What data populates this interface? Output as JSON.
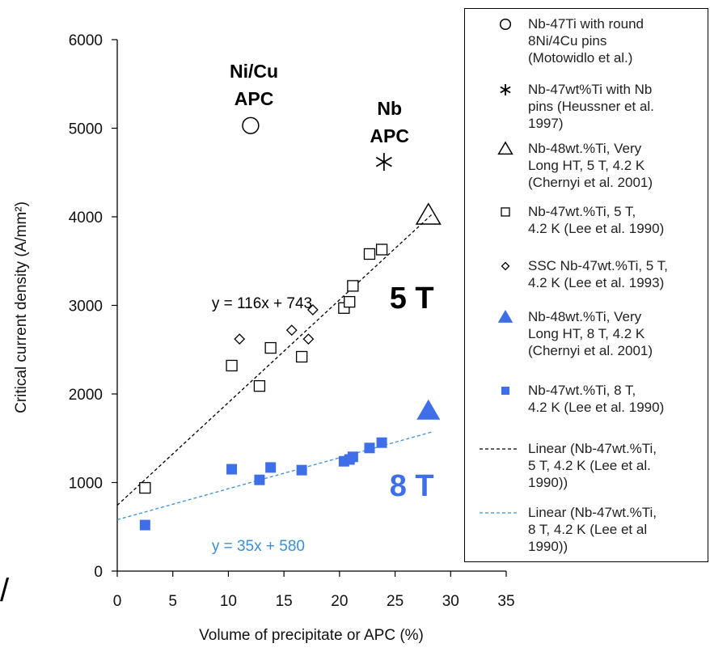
{
  "chart_data": {
    "type": "scatter",
    "xlabel": "Volume of precipitate or APC (%)",
    "ylabel": "Critical current density  (A/mm²)",
    "xlim": [
      0,
      35
    ],
    "ylim": [
      0,
      6000
    ],
    "xticks": [
      "0",
      "5",
      "10",
      "15",
      "20",
      "25",
      "30",
      "35"
    ],
    "yticks": [
      "0",
      "1000",
      "2000",
      "3000",
      "4000",
      "5000",
      "6000"
    ],
    "grid": false,
    "legend_position": "right",
    "series": [
      {
        "name": "Nb-47Ti with round 8Ni/4Cu pins (Motowidlo et al.)",
        "marker": "circle",
        "color": "#000000",
        "points": [
          [
            12,
            5030
          ]
        ]
      },
      {
        "name": "Nb-47wt%Ti with Nb pins (Heussner et al. 1997)",
        "marker": "asterisk",
        "color": "#000000",
        "points": [
          [
            24,
            4620
          ]
        ]
      },
      {
        "name": "Nb-48wt.%Ti, Very Long HT, 5 T, 4.2 K (Chernyi et al. 2001)",
        "marker": "triangle-open",
        "color": "#000000",
        "points": [
          [
            28,
            4020
          ]
        ]
      },
      {
        "name": "Nb-47wt.%Ti, 5 T, 4.2 K (Lee et al. 1990)",
        "marker": "square-open",
        "color": "#000000",
        "points": [
          [
            2.5,
            940
          ],
          [
            10.3,
            2320
          ],
          [
            12.8,
            2090
          ],
          [
            13.8,
            2520
          ],
          [
            16.6,
            2420
          ],
          [
            20.4,
            2970
          ],
          [
            20.9,
            3040
          ],
          [
            21.2,
            3220
          ],
          [
            22.7,
            3580
          ],
          [
            23.8,
            3630
          ]
        ]
      },
      {
        "name": "SSC Nb-47wt.%Ti, 5 T, 4.2 K (Lee et al. 1993)",
        "marker": "diamond-open",
        "color": "#000000",
        "points": [
          [
            11,
            2620
          ],
          [
            15.7,
            2720
          ],
          [
            17.2,
            2620
          ],
          [
            17.6,
            2950
          ]
        ]
      },
      {
        "name": "Nb-48wt.%Ti, Very Long HT, 8 T, 4.2 K (Chernyi et al. 2001)",
        "marker": "triangle-filled",
        "color": "#3f6fe8",
        "points": [
          [
            28,
            1810
          ]
        ]
      },
      {
        "name": "Nb-47wt.%Ti, 8 T, 4.2 K (Lee et al. 1990)",
        "marker": "square-filled",
        "color": "#3f6fe8",
        "points": [
          [
            2.5,
            520
          ],
          [
            10.3,
            1150
          ],
          [
            12.8,
            1030
          ],
          [
            13.8,
            1170
          ],
          [
            16.6,
            1140
          ],
          [
            20.4,
            1240
          ],
          [
            20.9,
            1260
          ],
          [
            21.2,
            1290
          ],
          [
            22.7,
            1390
          ],
          [
            23.8,
            1450
          ]
        ]
      }
    ],
    "trendlines": [
      {
        "name": "Linear (Nb-47wt.%Ti, 5 T, 4.2 K (Lee et al. 1990))",
        "slope": 116,
        "intercept": 743,
        "x_range": [
          0,
          28.3
        ],
        "color": "#000000",
        "dash": true,
        "equation": "y = 116x + 743"
      },
      {
        "name": "Linear (Nb-47wt.%Ti, 8 T, 4.2 K (Lee et al 1990))",
        "slope": 35,
        "intercept": 580,
        "x_range": [
          0,
          28.3
        ],
        "color": "#3a8fd6",
        "dash": true,
        "equation": "y = 35x + 580"
      }
    ],
    "annotations": [
      {
        "text": "Ni/Cu",
        "x": 12.3,
        "y": 5570,
        "color": "#000000"
      },
      {
        "text": "APC",
        "x": 12.3,
        "y": 5260,
        "color": "#000000"
      },
      {
        "text": "Nb",
        "x": 24.5,
        "y": 5150,
        "color": "#000000"
      },
      {
        "text": "APC",
        "x": 24.5,
        "y": 4840,
        "color": "#000000"
      },
      {
        "text": "5 T",
        "x": 26.5,
        "y": 2970,
        "color": "#000000"
      },
      {
        "text": "8 T",
        "x": 26.5,
        "y": 850,
        "color": "#3f6fe8"
      },
      {
        "text": "y = 116x + 743",
        "x": 8.5,
        "y": 2970,
        "color": "#000000"
      },
      {
        "text": "y = 35x + 580",
        "x": 8.5,
        "y": 230,
        "color": "#3a8fd6"
      }
    ]
  },
  "legend": {
    "entries": [
      {
        "marker": "circle",
        "lines": [
          "Nb-47Ti with round",
          "8Ni/4Cu pins",
          "(Motowidlo et al.)"
        ]
      },
      {
        "marker": "asterisk",
        "lines": [
          "Nb-47wt%Ti with Nb",
          "pins (Heussner et al.",
          "1997)"
        ]
      },
      {
        "marker": "triangle-open",
        "lines": [
          "Nb-48wt.%Ti, Very",
          "Long HT, 5 T, 4.2 K",
          "(Chernyi et al. 2001)"
        ]
      },
      {
        "marker": "square-open",
        "lines": [
          "Nb-47wt.%Ti, 5 T,",
          "4.2 K (Lee et al. 1990)"
        ]
      },
      {
        "marker": "diamond-open",
        "lines": [
          "SSC Nb-47wt.%Ti,  5 T,",
          "4.2 K (Lee et al. 1993)"
        ]
      },
      {
        "marker": "triangle-filled",
        "lines": [
          "Nb-48wt.%Ti, Very",
          "Long HT, 8 T, 4.2 K",
          "(Chernyi et al. 2001)"
        ]
      },
      {
        "marker": "square-filled",
        "lines": [
          "Nb-47wt.%Ti, 8 T,",
          "4.2 K (Lee et al. 1990)"
        ]
      },
      {
        "marker": "dash-black",
        "lines": [
          "Linear (Nb-47wt.%Ti,",
          "5 T, 4.2 K (Lee et al.",
          "1990))"
        ]
      },
      {
        "marker": "dash-blue",
        "lines": [
          "Linear (Nb-47wt.%Ti,",
          "8 T, 4.2 K (Lee et al",
          "1990))"
        ]
      }
    ]
  },
  "stray_mark": "/"
}
